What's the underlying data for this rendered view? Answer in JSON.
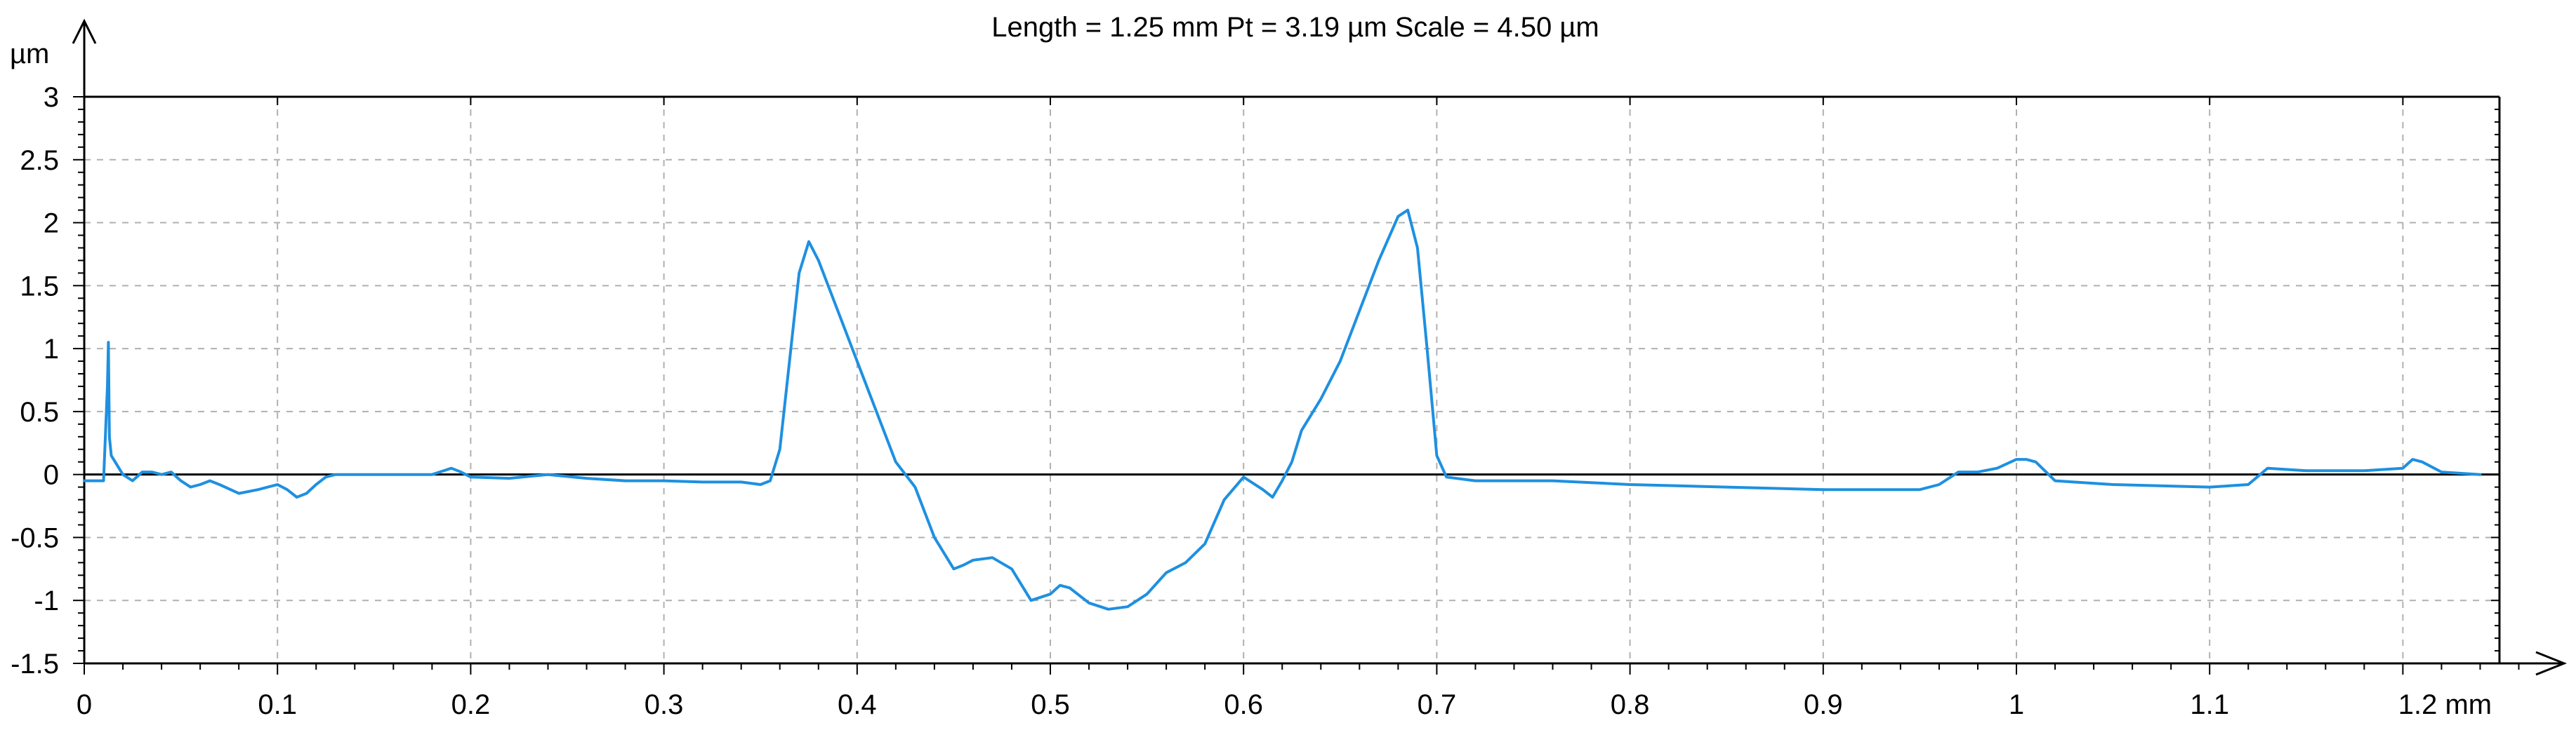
{
  "chart_data": {
    "type": "line",
    "title": "Length = 1.25 mm  Pt = 3.19 µm  Scale = 4.50 µm",
    "ylabel": "µm",
    "xunit": "mm",
    "xlim": [
      0,
      1.25
    ],
    "ylim": [
      -1.5,
      3
    ],
    "grid": true,
    "x_ticks": [
      0,
      0.1,
      0.2,
      0.3,
      0.4,
      0.5,
      0.6,
      0.7,
      0.8,
      0.9,
      1,
      1.1,
      1.2
    ],
    "x_tick_labels": [
      "0",
      "0.1",
      "0.2",
      "0.3",
      "0.4",
      "0.5",
      "0.6",
      "0.7",
      "0.8",
      "0.9",
      "1",
      "1.1",
      "1.2 mm"
    ],
    "y_ticks": [
      3,
      2.5,
      2,
      1.5,
      1,
      0.5,
      0,
      -0.5,
      -1,
      -1.5
    ],
    "y_tick_labels": [
      "3",
      "2.5",
      "2",
      "1.5",
      "1",
      "0.5",
      "0",
      "-0.5",
      "-1",
      "-1.5"
    ],
    "zero_line": 0,
    "colors": {
      "profile": "#1e90e0",
      "zero_line": "#000000",
      "grid": "#b0b0b0",
      "axis": "#000000"
    },
    "series": [
      {
        "x": [
          0,
          0.01,
          0.012,
          0.0125,
          0.013,
          0.014,
          0.016,
          0.02,
          0.025,
          0.03,
          0.035,
          0.04,
          0.045,
          0.05,
          0.055,
          0.06,
          0.065,
          0.07,
          0.08,
          0.09,
          0.1,
          0.105,
          0.11,
          0.115,
          0.12,
          0.125,
          0.13,
          0.15,
          0.17,
          0.18,
          0.19,
          0.195,
          0.2,
          0.22,
          0.24,
          0.26,
          0.28,
          0.3,
          0.32,
          0.34,
          0.35,
          0.355,
          0.36,
          0.365,
          0.37,
          0.375,
          0.38,
          0.39,
          0.4,
          0.41,
          0.42,
          0.43,
          0.44,
          0.45,
          0.455,
          0.46,
          0.47,
          0.48,
          0.49,
          0.5,
          0.505,
          0.51,
          0.52,
          0.53,
          0.54,
          0.55,
          0.56,
          0.57,
          0.58,
          0.59,
          0.6,
          0.61,
          0.615,
          0.62,
          0.625,
          0.63,
          0.64,
          0.65,
          0.66,
          0.67,
          0.68,
          0.685,
          0.69,
          0.695,
          0.7,
          0.705,
          0.72,
          0.76,
          0.8,
          0.85,
          0.9,
          0.95,
          0.96,
          0.97,
          0.98,
          0.99,
          1,
          1.005,
          1.01,
          1.02,
          1.05,
          1.1,
          1.12,
          1.13,
          1.15,
          1.18,
          1.2,
          1.205,
          1.21,
          1.22,
          1.24
        ],
        "y": [
          -0.05,
          -0.05,
          0.7,
          1.05,
          0.3,
          0.15,
          0.1,
          0,
          -0.05,
          0.02,
          0.02,
          0,
          0.02,
          -0.05,
          -0.1,
          -0.08,
          -0.05,
          -0.08,
          -0.15,
          -0.12,
          -0.08,
          -0.12,
          -0.18,
          -0.15,
          -0.08,
          -0.02,
          0,
          0,
          0,
          0,
          0.05,
          0.02,
          -0.02,
          -0.03,
          0,
          -0.03,
          -0.05,
          -0.05,
          -0.06,
          -0.06,
          -0.08,
          -0.05,
          0.2,
          0.9,
          1.6,
          1.85,
          1.7,
          1.3,
          0.9,
          0.5,
          0.1,
          -0.1,
          -0.5,
          -0.75,
          -0.72,
          -0.68,
          -0.66,
          -0.75,
          -1.0,
          -0.95,
          -0.88,
          -0.9,
          -1.02,
          -1.07,
          -1.05,
          -0.95,
          -0.78,
          -0.7,
          -0.55,
          -0.2,
          -0.02,
          -0.12,
          -0.18,
          -0.05,
          0.1,
          0.35,
          0.6,
          0.9,
          1.3,
          1.7,
          2.05,
          2.1,
          1.8,
          1.0,
          0.15,
          -0.02,
          -0.05,
          -0.05,
          -0.08,
          -0.1,
          -0.12,
          -0.12,
          -0.08,
          0.02,
          0.02,
          0.05,
          0.12,
          0.12,
          0.1,
          -0.05,
          -0.08,
          -0.1,
          -0.08,
          0.05,
          0.03,
          0.03,
          0.05,
          0.12,
          0.1,
          0.02,
          0.0
        ]
      }
    ]
  }
}
